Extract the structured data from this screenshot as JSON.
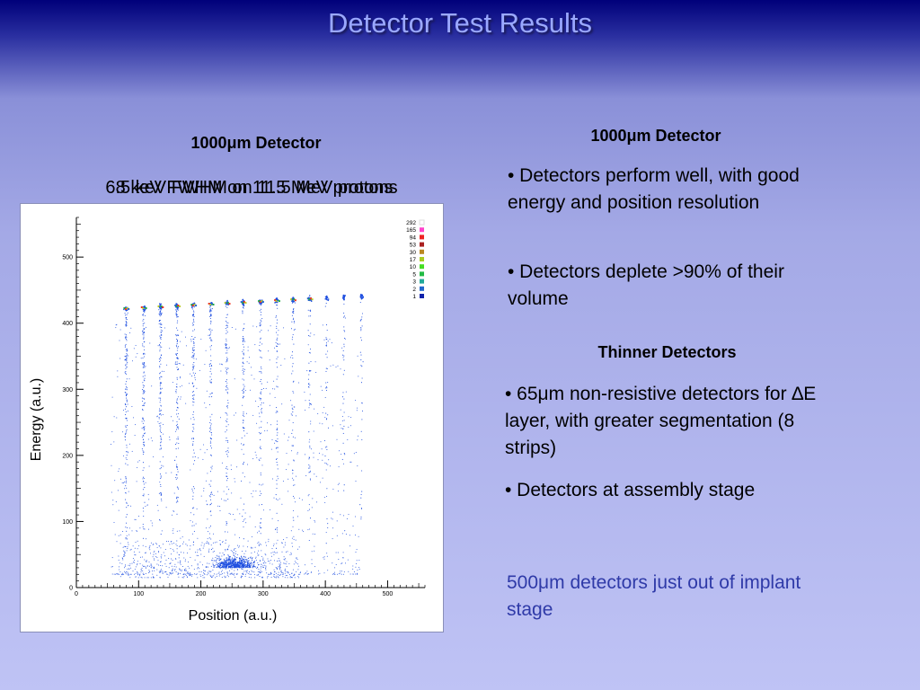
{
  "slide": {
    "title": "Detector Test Results",
    "left_heading": "1000μm Detector",
    "caption_a": "6.5 keV FWHM on 11.5 MeV protons",
    "caption_b": "8 keV FWHM on 11.5 MeV protons"
  },
  "right_panel": {
    "heading_1": "1000μm Detector",
    "bullet_1": "• Detectors perform well, with good energy and position resolution",
    "bullet_2": "• Detectors deplete >90% of their volume",
    "heading_2": "Thinner Detectors",
    "bullet_3": "• 65μm non-resistive detectors for ∆E layer, with greater segmentation (8 strips)",
    "bullet_4": "• Detectors at assembly stage",
    "footer_note": "500μm detectors just out of implant stage"
  },
  "colors": {
    "points": "#1f4fe0",
    "accent_text": "#2f3aa8"
  },
  "chart_data": {
    "type": "scatter",
    "xlabel": "Position (a.u.)",
    "ylabel": "Energy (a.u.)",
    "xlim": [
      0,
      560
    ],
    "ylim": [
      0,
      560
    ],
    "xticks": [
      0,
      100,
      200,
      300,
      400,
      500
    ],
    "yticks": [
      0,
      100,
      200,
      300,
      400,
      500
    ],
    "peak_energy_trend": [
      [
        80,
        422
      ],
      [
        400,
        438
      ]
    ],
    "strip_positions": [
      80,
      108,
      135,
      162,
      188,
      216,
      242,
      268,
      296,
      322,
      348,
      375,
      402,
      430,
      458
    ],
    "low_energy_cluster": {
      "x": 255,
      "y": 30
    },
    "color_scale": {
      "levels": [
        "292",
        "165",
        "94",
        "53",
        "30",
        "17",
        "10",
        "5",
        "3",
        "2",
        "1"
      ],
      "colors": [
        "#ffffff",
        "#ff44cc",
        "#ee2222",
        "#aa2020",
        "#bb8822",
        "#aacc22",
        "#44dd22",
        "#22bb44",
        "#22aa99",
        "#2266cc",
        "#1122aa"
      ]
    }
  }
}
